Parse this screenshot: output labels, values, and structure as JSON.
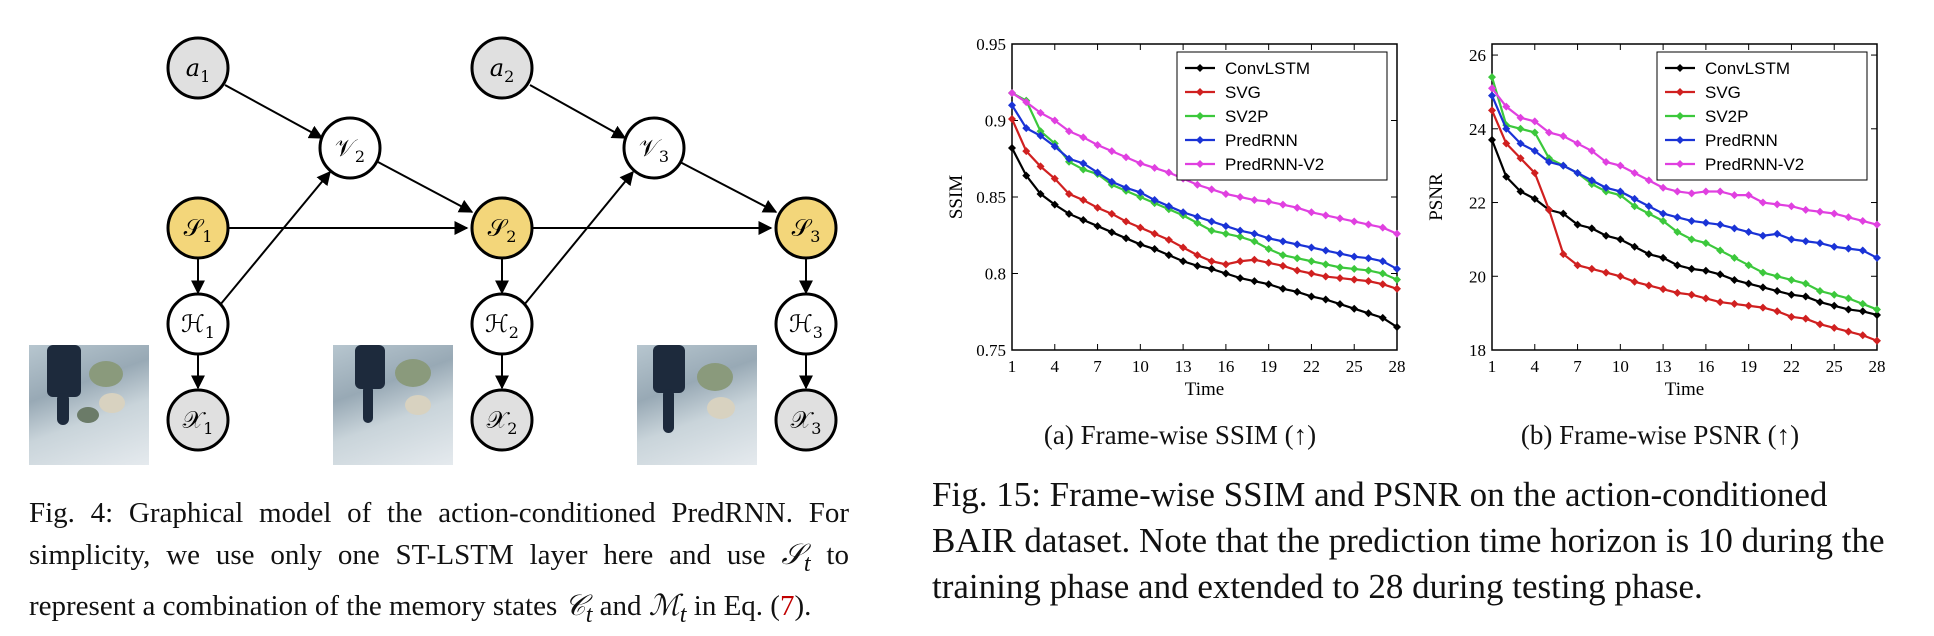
{
  "colors": {
    "node_observed": "#e0e0e0",
    "node_state": "#f3d67a",
    "node_hidden": "#ffffff",
    "convlstm": "#000000",
    "svg": "#d02020",
    "sv2p": "#3cc83c",
    "predrnn": "#1a33d6",
    "predrnnv2": "#e040e0",
    "ref": "#c00000"
  },
  "graph": {
    "nodes": {
      "a1": {
        "base": "a",
        "sub": "1"
      },
      "a2": {
        "base": "a",
        "sub": "2"
      },
      "v2": {
        "base": "𝒱",
        "sub": "2"
      },
      "v3": {
        "base": "𝒱",
        "sub": "3"
      },
      "s1": {
        "base": "𝒮",
        "sub": "1"
      },
      "s2": {
        "base": "𝒮",
        "sub": "2"
      },
      "s3": {
        "base": "𝒮",
        "sub": "3"
      },
      "h1": {
        "base": "ℋ",
        "sub": "1"
      },
      "h2": {
        "base": "ℋ",
        "sub": "2"
      },
      "h3": {
        "base": "ℋ",
        "sub": "3"
      },
      "x1": {
        "base": "𝒳",
        "sub": "1"
      },
      "x2": {
        "base": "𝒳",
        "sub": "2"
      },
      "x3": {
        "base": "𝒳",
        "sub": "3"
      }
    }
  },
  "fig4": {
    "caption_part1": "Fig. 4: Graphical model of the action-conditioned PredRNN. For simplicity, we use only one ST-LSTM layer here and use ",
    "sym_s": "𝒮",
    "sym_s_sub": "t",
    "caption_part2": " to represent a combination of the memory states ",
    "sym_c": "𝒞",
    "sym_c_sub": "t",
    "and": " and ",
    "sym_m": "ℳ",
    "sym_m_sub": "t",
    "in_eq": " in Eq. (",
    "eq_ref": "7",
    "close": ")."
  },
  "fig15": {
    "caption": "Fig. 15: Frame-wise SSIM and PSNR on the action-conditioned BAIR dataset. Note that the prediction time horizon is 10 during the training phase and extended to 28 during testing phase.",
    "sub_a": "(a)  Frame-wise SSIM (↑)",
    "sub_b": "(b)  Frame-wise PSNR (↑)"
  },
  "chart_data": [
    {
      "type": "line",
      "title": "(a) Frame-wise SSIM (↑)",
      "xlabel": "Time",
      "ylabel": "SSIM",
      "xlim": [
        1,
        28
      ],
      "ylim": [
        0.75,
        0.95
      ],
      "xticks": [
        "1",
        "4",
        "7",
        "10",
        "13",
        "16",
        "19",
        "22",
        "25",
        "28"
      ],
      "yticks": [
        "0.75",
        "0.8",
        "0.85",
        "0.9",
        "0.95"
      ],
      "legend": "top-right",
      "x": [
        1,
        2,
        3,
        4,
        5,
        6,
        7,
        8,
        9,
        10,
        11,
        12,
        13,
        14,
        15,
        16,
        17,
        18,
        19,
        20,
        21,
        22,
        23,
        24,
        25,
        26,
        27,
        28
      ],
      "series": [
        {
          "name": "ConvLSTM",
          "color": "#000000",
          "values": [
            0.882,
            0.864,
            0.852,
            0.845,
            0.839,
            0.835,
            0.831,
            0.827,
            0.823,
            0.819,
            0.816,
            0.812,
            0.808,
            0.805,
            0.803,
            0.8,
            0.797,
            0.795,
            0.793,
            0.79,
            0.788,
            0.785,
            0.783,
            0.78,
            0.777,
            0.774,
            0.771,
            0.765
          ]
        },
        {
          "name": "SVG",
          "color": "#d02020",
          "values": [
            0.901,
            0.88,
            0.87,
            0.862,
            0.852,
            0.848,
            0.843,
            0.839,
            0.834,
            0.83,
            0.826,
            0.822,
            0.817,
            0.812,
            0.808,
            0.806,
            0.808,
            0.809,
            0.807,
            0.805,
            0.802,
            0.8,
            0.798,
            0.797,
            0.796,
            0.795,
            0.793,
            0.79
          ]
        },
        {
          "name": "SV2P",
          "color": "#3cc83c",
          "values": [
            0.918,
            0.913,
            0.893,
            0.885,
            0.873,
            0.868,
            0.865,
            0.858,
            0.854,
            0.85,
            0.846,
            0.842,
            0.838,
            0.833,
            0.828,
            0.826,
            0.824,
            0.821,
            0.816,
            0.812,
            0.81,
            0.808,
            0.806,
            0.804,
            0.803,
            0.802,
            0.8,
            0.796
          ]
        },
        {
          "name": "PredRNN",
          "color": "#1a33d6",
          "values": [
            0.91,
            0.895,
            0.89,
            0.883,
            0.875,
            0.872,
            0.866,
            0.86,
            0.856,
            0.853,
            0.848,
            0.844,
            0.84,
            0.837,
            0.834,
            0.831,
            0.828,
            0.826,
            0.823,
            0.821,
            0.819,
            0.817,
            0.815,
            0.813,
            0.811,
            0.81,
            0.808,
            0.803
          ]
        },
        {
          "name": "PredRNN-V2",
          "color": "#e040e0",
          "values": [
            0.918,
            0.912,
            0.905,
            0.9,
            0.893,
            0.889,
            0.884,
            0.88,
            0.876,
            0.872,
            0.869,
            0.866,
            0.862,
            0.858,
            0.855,
            0.852,
            0.85,
            0.848,
            0.847,
            0.845,
            0.843,
            0.84,
            0.838,
            0.836,
            0.834,
            0.832,
            0.83,
            0.826
          ]
        }
      ]
    },
    {
      "type": "line",
      "title": "(b) Frame-wise PSNR (↑)",
      "xlabel": "Time",
      "ylabel": "PSNR",
      "xlim": [
        1,
        28
      ],
      "ylim": [
        18,
        26.3
      ],
      "xticks": [
        "1",
        "4",
        "7",
        "10",
        "13",
        "16",
        "19",
        "22",
        "25",
        "28"
      ],
      "yticks": [
        "18",
        "20",
        "22",
        "24",
        "26"
      ],
      "legend": "top-right",
      "x": [
        1,
        2,
        3,
        4,
        5,
        6,
        7,
        8,
        9,
        10,
        11,
        12,
        13,
        14,
        15,
        16,
        17,
        18,
        19,
        20,
        21,
        22,
        23,
        24,
        25,
        26,
        27,
        28
      ],
      "series": [
        {
          "name": "ConvLSTM",
          "color": "#000000",
          "values": [
            23.7,
            22.7,
            22.3,
            22.1,
            21.8,
            21.7,
            21.4,
            21.3,
            21.1,
            21.0,
            20.8,
            20.6,
            20.5,
            20.3,
            20.2,
            20.15,
            20.05,
            19.9,
            19.8,
            19.7,
            19.6,
            19.5,
            19.45,
            19.3,
            19.2,
            19.1,
            19.05,
            18.95
          ]
        },
        {
          "name": "SVG",
          "color": "#d02020",
          "values": [
            24.5,
            23.6,
            23.2,
            22.8,
            21.8,
            20.6,
            20.3,
            20.2,
            20.1,
            20.0,
            19.85,
            19.75,
            19.65,
            19.55,
            19.5,
            19.4,
            19.3,
            19.25,
            19.2,
            19.15,
            19.05,
            18.9,
            18.85,
            18.7,
            18.6,
            18.5,
            18.4,
            18.25
          ]
        },
        {
          "name": "SV2P",
          "color": "#3cc83c",
          "values": [
            25.4,
            24.1,
            24.0,
            23.9,
            23.2,
            23.0,
            22.8,
            22.5,
            22.3,
            22.2,
            21.9,
            21.7,
            21.5,
            21.2,
            21.0,
            20.9,
            20.7,
            20.5,
            20.3,
            20.1,
            20.0,
            19.9,
            19.8,
            19.6,
            19.5,
            19.4,
            19.25,
            19.1
          ]
        },
        {
          "name": "PredRNN",
          "color": "#1a33d6",
          "values": [
            24.9,
            24.0,
            23.6,
            23.4,
            23.1,
            23.0,
            22.8,
            22.6,
            22.4,
            22.3,
            22.1,
            21.9,
            21.7,
            21.6,
            21.5,
            21.45,
            21.4,
            21.3,
            21.2,
            21.1,
            21.15,
            21.0,
            20.95,
            20.9,
            20.8,
            20.75,
            20.7,
            20.5
          ]
        },
        {
          "name": "PredRNN-V2",
          "color": "#e040e0",
          "values": [
            25.1,
            24.6,
            24.3,
            24.2,
            23.9,
            23.8,
            23.6,
            23.4,
            23.1,
            23.0,
            22.8,
            22.6,
            22.4,
            22.3,
            22.25,
            22.3,
            22.3,
            22.2,
            22.2,
            22.0,
            21.95,
            21.9,
            21.8,
            21.75,
            21.7,
            21.6,
            21.5,
            21.4
          ]
        }
      ]
    }
  ]
}
